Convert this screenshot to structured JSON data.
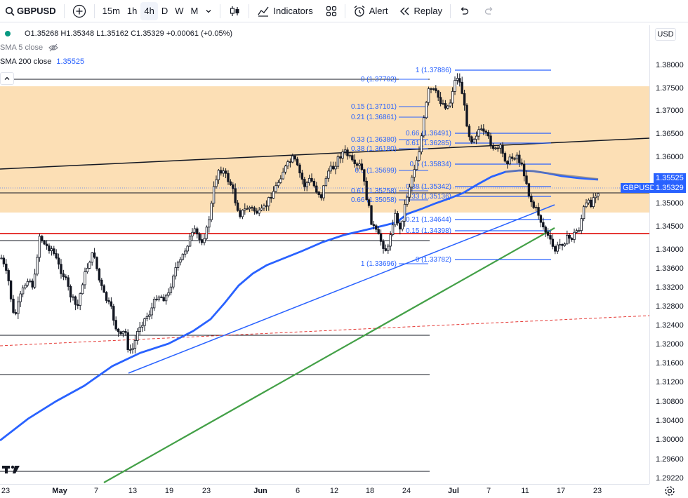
{
  "toolbar": {
    "symbol": "GBPUSD",
    "intervals": [
      "15m",
      "1h",
      "4h",
      "D",
      "W",
      "M"
    ],
    "active_interval": "4h",
    "indicators_label": "Indicators",
    "alert_label": "Alert",
    "replay_label": "Replay"
  },
  "legend": {
    "ohlc": "O1.35268 H1.35348 L1.35162 C1.35329 +0.00061 (+0.05%)",
    "sma5_label": "SMA 5 close",
    "sma200_label": "SMA 200 close",
    "sma200_value": "1.35525"
  },
  "price_axis": {
    "currency": "USD",
    "ticks": [
      "1.38000",
      "1.37500",
      "1.37000",
      "1.36500",
      "1.36000",
      "1.35500",
      "1.35000",
      "1.34500",
      "1.34000",
      "1.33600",
      "1.33200",
      "1.32800",
      "1.32400",
      "1.32000",
      "1.31600",
      "1.31200",
      "1.30800",
      "1.30400",
      "1.30000",
      "1.29600",
      "1.29220"
    ],
    "sma_tag": "1.35525",
    "symbol_tag": "GBPUSD",
    "price_tag": "1.35329",
    "colors": {
      "sma_tag": "#2962ff",
      "price_tag": "#2962ff"
    }
  },
  "time_axis": {
    "labels": [
      "23",
      "May",
      "7",
      "13",
      "19",
      "23",
      "Jun",
      "6",
      "12",
      "18",
      "24",
      "Jul",
      "7",
      "11",
      "17",
      "23"
    ]
  },
  "fib_left": {
    "levels": [
      "0 (1.37702)",
      "0.15 (1.37101)",
      "0.21 (1.36861)",
      "0.33 (1.36380)",
      "0.38 (1.36180)",
      "0.5 (1.35699)",
      "0.61 (1.35258)",
      "0.66 (1.35058)",
      "1 (1.33696)"
    ]
  },
  "fib_right": {
    "levels": [
      "1 (1.37886)",
      "0.66 (1.36491)",
      "0.61 (1.36285)",
      "0.5 (1.35834)",
      "0.38 (1.35342)",
      "0.33 (1.35136)",
      "0.21 (1.34644)",
      "0.15 (1.34398)",
      "0 (1.33782)"
    ]
  },
  "chart_data": {
    "type": "candlestick",
    "symbol": "GBPUSD",
    "interval": "4h",
    "ylim": [
      1.2922,
      1.3815
    ],
    "last_close": 1.35329,
    "sma200_last": 1.35525,
    "zone": [
      1.3482,
      1.3753
    ],
    "support_line": 1.3432,
    "colors": {
      "up": "#089981",
      "down": "#f23645",
      "candle": "#131722",
      "zone": "#fcd9a8",
      "sma200": "#2962ff",
      "fib": "#2962ff",
      "trend": "#4caf50",
      "support": "#e53935"
    }
  }
}
